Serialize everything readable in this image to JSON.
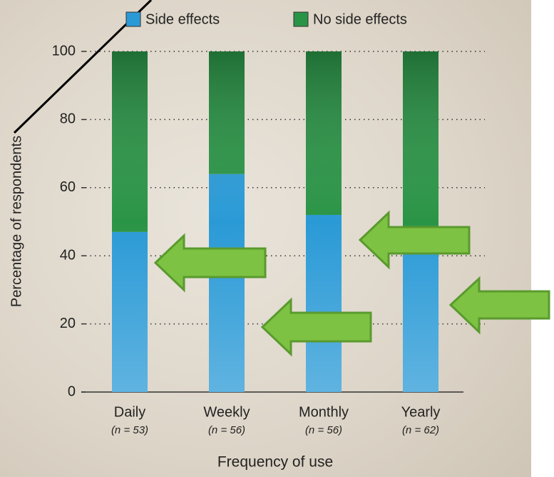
{
  "chart_data": {
    "type": "stacked_bar",
    "categories": [
      "Daily",
      "Weekly",
      "Monthly",
      "Yearly"
    ],
    "sublabels": [
      "(n = 53)",
      "(n = 56)",
      "(n = 56)",
      "(n = 62)"
    ],
    "series": [
      {
        "name": "Side effects",
        "color": "#2a9ad6",
        "values": [
          47,
          64,
          52,
          45
        ]
      },
      {
        "name": "No side effects",
        "color": "#2a9446",
        "values": [
          53,
          36,
          48,
          55
        ]
      }
    ],
    "ylim": [
      0,
      100
    ],
    "yticks": [
      0,
      20,
      40,
      60,
      80,
      100
    ],
    "y_label": "Percentage of respondents",
    "x_label": "Frequency of use",
    "grid": true
  }
}
